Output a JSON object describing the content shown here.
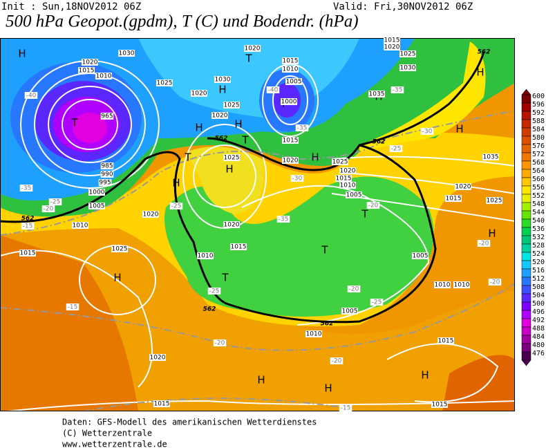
{
  "header": {
    "init": "Init : Sun,18NOV2012 06Z",
    "valid": "Valid: Fri,30NOV2012 06Z",
    "title": "500 hPa Geopot.(gpdm), T (C) und Bodendr. (hPa)"
  },
  "colorbar": {
    "levels": [
      600,
      596,
      592,
      588,
      584,
      580,
      576,
      572,
      568,
      564,
      560,
      556,
      552,
      548,
      544,
      540,
      536,
      532,
      528,
      524,
      520,
      516,
      512,
      508,
      504,
      500,
      496,
      492,
      488,
      484,
      480,
      476
    ],
    "colors": [
      "#780000",
      "#a00000",
      "#b41400",
      "#c82800",
      "#d23c00",
      "#dc5000",
      "#e66400",
      "#f07800",
      "#ff9600",
      "#ffaa00",
      "#ffc800",
      "#ffe600",
      "#e6f000",
      "#a0f000",
      "#64e600",
      "#28dc28",
      "#00d250",
      "#00c878",
      "#00d2a0",
      "#00e6e6",
      "#14c8ff",
      "#1ea0ff",
      "#2878ff",
      "#3c50ff",
      "#5a28ff",
      "#8000ff",
      "#b000ff",
      "#e000e0",
      "#c800c8",
      "#a000a0",
      "#7a0080",
      "#4b0050"
    ]
  },
  "map_labels": [
    "H",
    "T",
    "H",
    "T",
    "H",
    "H",
    "T",
    "H",
    "H",
    "T",
    "T",
    "H",
    "H",
    "H",
    "H",
    "T",
    "H",
    "T",
    "T",
    "H",
    "H",
    "H",
    "H",
    "1015",
    "1025",
    "1020",
    "1010",
    "1005",
    "1000",
    "995",
    "990",
    "985",
    "965",
    "1020",
    "1015",
    "1010",
    "1030",
    "1025",
    "1020",
    "1020",
    "1030",
    "1025",
    "1020",
    "1015",
    "1010",
    "1005",
    "1000",
    "1015",
    "1020",
    "1025",
    "1020",
    "1015",
    "1010",
    "1005",
    "1025",
    "1020",
    "1015",
    "1010",
    "1035",
    "1020",
    "1015",
    "1025",
    "1005",
    "1010",
    "1010",
    "1005",
    "1010",
    "1015",
    "1020",
    "1015",
    "1015",
    "1035",
    "1030",
    "1025",
    "1020",
    "1015",
    "-40",
    "-35",
    "-15",
    "-20",
    "-25",
    "-15",
    "-20",
    "-15",
    "-20",
    "-20",
    "-25",
    "-25",
    "-25",
    "-20",
    "-25",
    "-30",
    "-35",
    "-35",
    "-20",
    "-20",
    "-30",
    "-35",
    "-40",
    "562",
    "562",
    "562",
    "562",
    "562",
    "562"
  ],
  "footer": [
    "Daten: GFS-Modell des amerikanischen Wetterdienstes",
    "(C) Wetterzentrale",
    "www.wetterzentrale.de"
  ]
}
